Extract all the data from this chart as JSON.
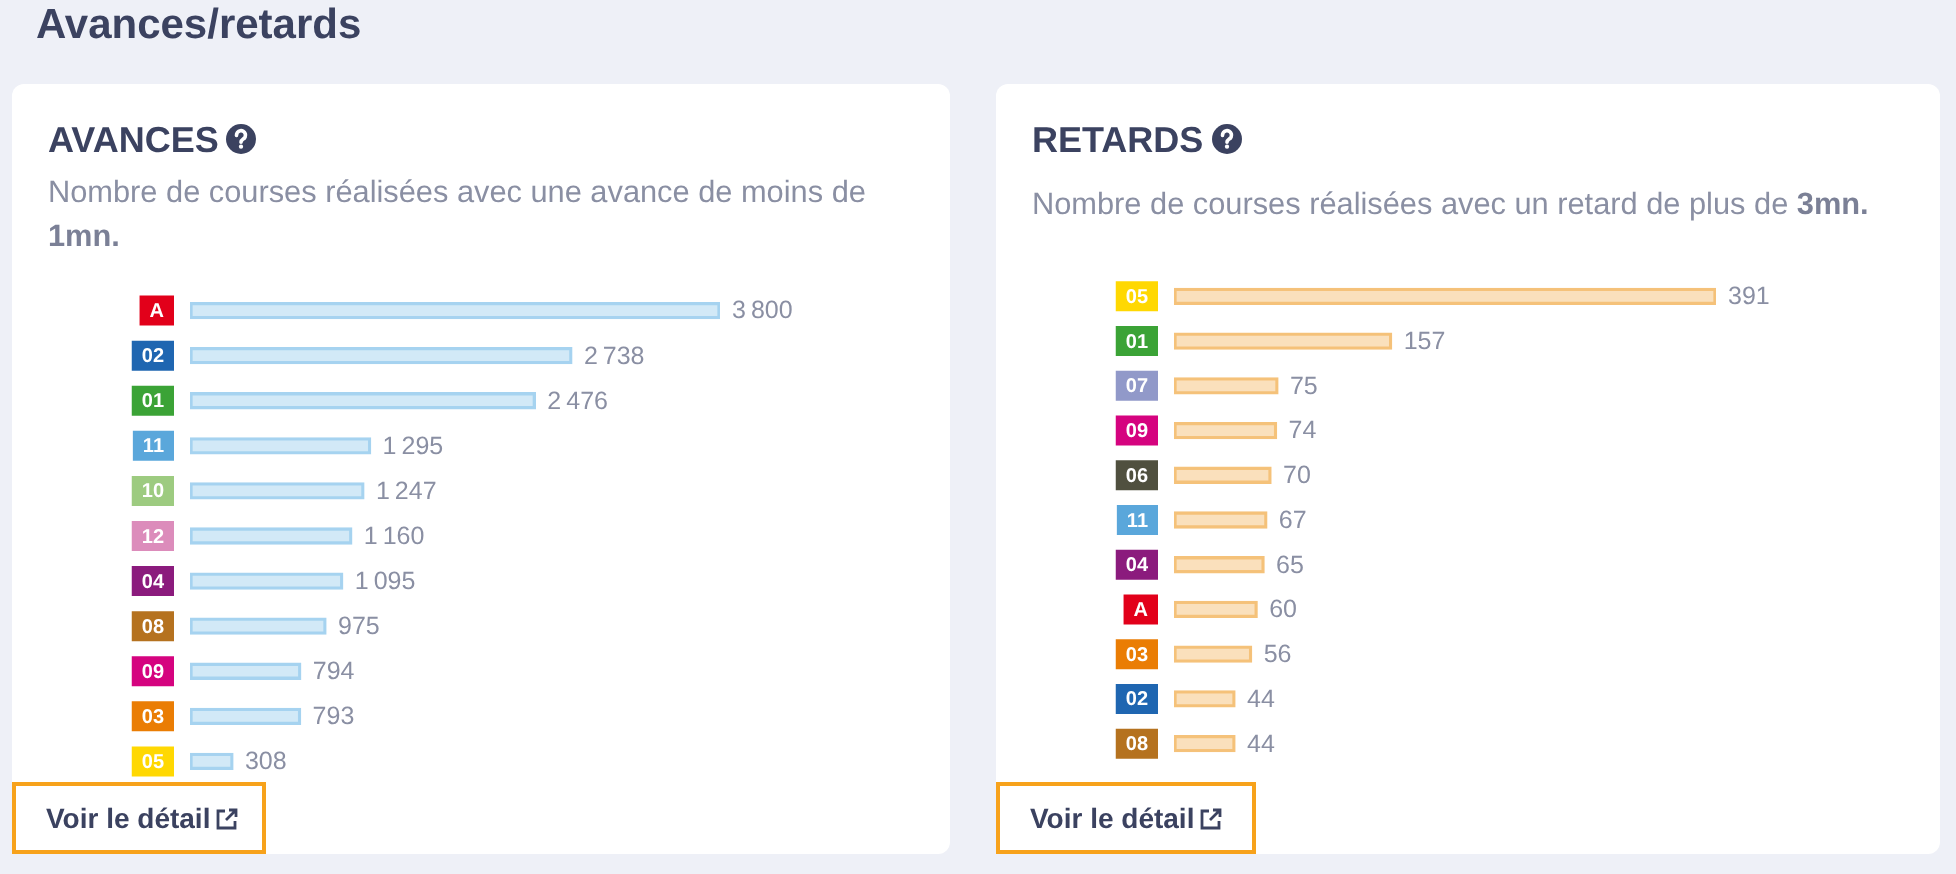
{
  "chart_data": [
    {
      "type": "bar",
      "orientation": "horizontal",
      "title": "AVANCES",
      "subtitle": "Nombre de courses réalisées avec une avance de moins de 1mn.",
      "categories": [
        "A",
        "02",
        "01",
        "11",
        "10",
        "12",
        "04",
        "08",
        "09",
        "03",
        "05"
      ],
      "values": [
        3800,
        2738,
        2476,
        1295,
        1247,
        1160,
        1095,
        975,
        794,
        793,
        308
      ],
      "value_labels": [
        "3 800",
        "2 738",
        "2 476",
        "1 295",
        "1 247",
        "1 160",
        "1 095",
        "975",
        "794",
        "793",
        "308"
      ],
      "color": "#a6d3f0",
      "annotations": [
        "Avances/retards",
        "Voir le détail"
      ]
    },
    {
      "type": "bar",
      "orientation": "horizontal",
      "title": "RETARDS",
      "subtitle": "Nombre de courses réalisées avec un retard de plus de 3mn.",
      "categories": [
        "05",
        "01",
        "07",
        "09",
        "06",
        "11",
        "04",
        "A",
        "03",
        "02",
        "08"
      ],
      "values": [
        391,
        157,
        75,
        74,
        70,
        67,
        65,
        60,
        56,
        44,
        44
      ],
      "data_labels": true,
      "color": "#f5c27a",
      "annotations": [
        "Voir le détail"
      ]
    }
  ]
}
